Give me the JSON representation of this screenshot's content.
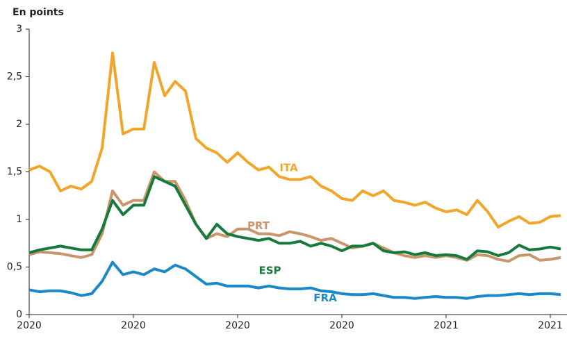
{
  "chart_data": {
    "type": "line",
    "y_label": "En points",
    "x": [
      0,
      0.1,
      0.2,
      0.3,
      0.4,
      0.5,
      0.6,
      0.7,
      0.8,
      0.9,
      1,
      1.1,
      1.2,
      1.3,
      1.4,
      1.5,
      1.6,
      1.7,
      1.8,
      1.9,
      2,
      2.1,
      2.2,
      2.3,
      2.4,
      2.5,
      2.6,
      2.7,
      2.8,
      2.9,
      3,
      3.1,
      3.2,
      3.3,
      3.4,
      3.5,
      3.6,
      3.7,
      3.8,
      3.9,
      4,
      4.1,
      4.2,
      4.3,
      4.4,
      4.5,
      4.6,
      4.7,
      4.8,
      4.9,
      5,
      5.1
    ],
    "xlim": [
      0,
      5.16
    ],
    "xticks": [
      {
        "value": 0,
        "label": "2020"
      },
      {
        "value": 1,
        "label": "2020"
      },
      {
        "value": 2,
        "label": "2020"
      },
      {
        "value": 3,
        "label": "2020"
      },
      {
        "value": 4,
        "label": "2021"
      },
      {
        "value": 5,
        "label": "2021"
      }
    ],
    "ylim": [
      0,
      3
    ],
    "yticks": [
      0,
      {
        "value": 0.5,
        "label": "0,5"
      },
      1,
      {
        "value": 1.5,
        "label": "1,5"
      },
      2,
      {
        "value": 2.5,
        "label": "2,5"
      },
      3
    ],
    "grid": false,
    "series": [
      {
        "name": "ITA",
        "color": "#f2a52b",
        "values": [
          1.52,
          1.56,
          1.5,
          1.3,
          1.35,
          1.32,
          1.4,
          1.75,
          2.75,
          1.9,
          1.95,
          1.95,
          2.65,
          2.3,
          2.45,
          2.35,
          1.85,
          1.75,
          1.7,
          1.6,
          1.7,
          1.6,
          1.52,
          1.55,
          1.45,
          1.42,
          1.42,
          1.45,
          1.35,
          1.3,
          1.22,
          1.2,
          1.3,
          1.25,
          1.3,
          1.2,
          1.18,
          1.15,
          1.18,
          1.12,
          1.08,
          1.1,
          1.05,
          1.2,
          1.08,
          0.92,
          0.98,
          1.03,
          0.96,
          0.97,
          1.03,
          1.04
        ]
      },
      {
        "name": "PRT",
        "color": "#c9956a",
        "values": [
          0.63,
          0.66,
          0.65,
          0.64,
          0.62,
          0.6,
          0.63,
          0.85,
          1.3,
          1.15,
          1.2,
          1.2,
          1.5,
          1.4,
          1.4,
          1.2,
          0.95,
          0.8,
          0.85,
          0.82,
          0.9,
          0.9,
          0.85,
          0.85,
          0.83,
          0.87,
          0.85,
          0.82,
          0.78,
          0.8,
          0.75,
          0.7,
          0.72,
          0.75,
          0.7,
          0.65,
          0.62,
          0.6,
          0.62,
          0.6,
          0.62,
          0.6,
          0.57,
          0.63,
          0.62,
          0.58,
          0.56,
          0.62,
          0.63,
          0.57,
          0.58,
          0.6
        ]
      },
      {
        "name": "ESP",
        "color": "#157a3c",
        "values": [
          0.65,
          0.68,
          0.7,
          0.72,
          0.7,
          0.68,
          0.68,
          0.9,
          1.2,
          1.05,
          1.15,
          1.15,
          1.45,
          1.4,
          1.35,
          1.15,
          0.95,
          0.8,
          0.95,
          0.85,
          0.82,
          0.8,
          0.78,
          0.8,
          0.75,
          0.75,
          0.77,
          0.72,
          0.75,
          0.72,
          0.67,
          0.72,
          0.72,
          0.75,
          0.67,
          0.65,
          0.66,
          0.63,
          0.65,
          0.62,
          0.63,
          0.62,
          0.58,
          0.67,
          0.66,
          0.62,
          0.65,
          0.73,
          0.68,
          0.69,
          0.71,
          0.69
        ]
      },
      {
        "name": "FRA",
        "color": "#1d88c8",
        "values": [
          0.26,
          0.24,
          0.25,
          0.25,
          0.23,
          0.2,
          0.22,
          0.35,
          0.55,
          0.42,
          0.45,
          0.42,
          0.48,
          0.45,
          0.52,
          0.48,
          0.4,
          0.32,
          0.33,
          0.3,
          0.3,
          0.3,
          0.28,
          0.3,
          0.28,
          0.27,
          0.27,
          0.28,
          0.25,
          0.24,
          0.22,
          0.21,
          0.21,
          0.22,
          0.2,
          0.18,
          0.18,
          0.17,
          0.18,
          0.19,
          0.18,
          0.18,
          0.17,
          0.19,
          0.2,
          0.2,
          0.21,
          0.22,
          0.21,
          0.22,
          0.22,
          0.21
        ]
      }
    ]
  }
}
